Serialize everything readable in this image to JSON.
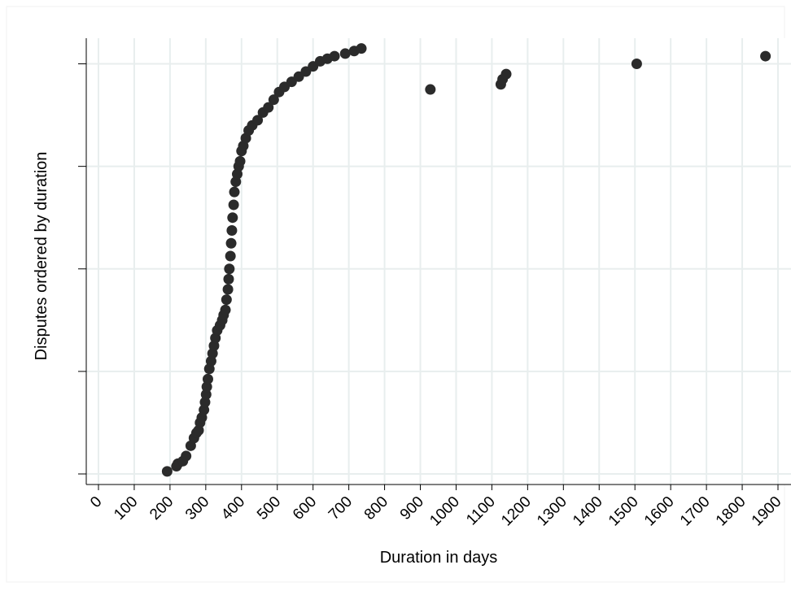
{
  "chart_data": {
    "type": "scatter",
    "title": "",
    "xlabel": "Duration in days",
    "ylabel": "Disputes ordered by duration",
    "xlim": [
      0,
      1900
    ],
    "ylim": [
      0,
      170
    ],
    "x_ticks": [
      0,
      100,
      200,
      300,
      400,
      500,
      600,
      700,
      800,
      900,
      1000,
      1100,
      1200,
      1300,
      1400,
      1500,
      1600,
      1700,
      1800,
      1900
    ],
    "x_tick_labels": [
      "0",
      "100",
      "200",
      "300",
      "400",
      "500",
      "600",
      "700",
      "800",
      "900",
      "1000",
      "1100",
      "1200",
      "1300",
      "1400",
      "1500",
      "1600",
      "1700",
      "1800",
      "1900"
    ],
    "y_ticks": [
      0,
      40,
      80,
      120,
      160
    ],
    "y_tick_labels": [
      "",
      "",
      "",
      "",
      ""
    ],
    "grid": true,
    "marker_color": "#2b2b2b",
    "grid_color": "#e8eeee",
    "series": [
      {
        "points": [
          [
            192,
            1
          ],
          [
            218,
            3
          ],
          [
            222,
            4
          ],
          [
            236,
            5
          ],
          [
            245,
            7
          ],
          [
            258,
            11
          ],
          [
            267,
            14
          ],
          [
            274,
            16
          ],
          [
            280,
            17
          ],
          [
            284,
            20
          ],
          [
            289,
            22
          ],
          [
            295,
            25
          ],
          [
            298,
            28
          ],
          [
            301,
            31
          ],
          [
            303,
            34
          ],
          [
            306,
            37
          ],
          [
            310,
            41
          ],
          [
            315,
            44
          ],
          [
            319,
            47
          ],
          [
            323,
            50
          ],
          [
            327,
            53
          ],
          [
            332,
            56
          ],
          [
            340,
            58
          ],
          [
            346,
            60
          ],
          [
            350,
            62
          ],
          [
            355,
            64
          ],
          [
            358,
            68
          ],
          [
            362,
            72
          ],
          [
            364,
            76
          ],
          [
            366,
            80
          ],
          [
            369,
            85
          ],
          [
            371,
            90
          ],
          [
            373,
            95
          ],
          [
            375,
            100
          ],
          [
            378,
            105
          ],
          [
            380,
            110
          ],
          [
            384,
            114
          ],
          [
            388,
            117
          ],
          [
            392,
            120
          ],
          [
            396,
            122
          ],
          [
            400,
            126
          ],
          [
            405,
            128
          ],
          [
            412,
            131
          ],
          [
            420,
            134
          ],
          [
            430,
            136
          ],
          [
            445,
            138
          ],
          [
            460,
            141
          ],
          [
            475,
            143
          ],
          [
            490,
            146
          ],
          [
            505,
            149
          ],
          [
            520,
            151
          ],
          [
            540,
            153
          ],
          [
            560,
            155
          ],
          [
            580,
            157
          ],
          [
            600,
            159
          ],
          [
            620,
            161
          ],
          [
            640,
            162
          ],
          [
            660,
            163
          ],
          [
            690,
            164
          ],
          [
            715,
            165
          ],
          [
            735,
            166
          ],
          [
            928,
            150
          ],
          [
            1125,
            152
          ],
          [
            1130,
            154
          ],
          [
            1140,
            156
          ],
          [
            1505,
            160
          ],
          [
            1865,
            163
          ]
        ]
      }
    ]
  }
}
